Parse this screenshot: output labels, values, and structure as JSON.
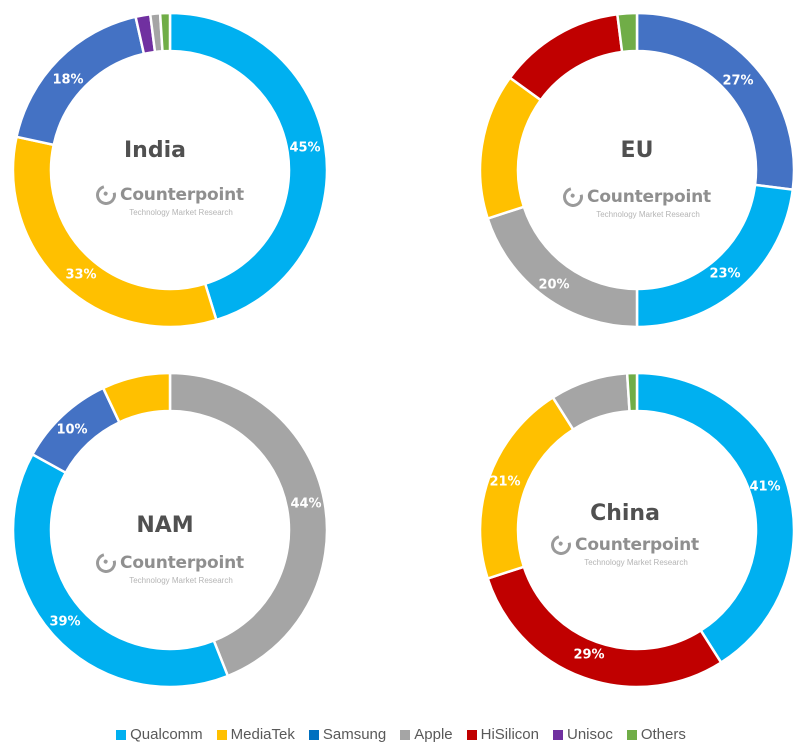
{
  "chart_data": [
    {
      "type": "pie",
      "subtype": "donut",
      "title": "India",
      "categories": [
        "Qualcomm",
        "MediaTek",
        "Samsung",
        "Unisoc",
        "Apple",
        "Others"
      ],
      "values": [
        45,
        33,
        18,
        1.5,
        1,
        1
      ],
      "labels": [
        "45%",
        "33%",
        "18%",
        "",
        "",
        ""
      ],
      "colors": [
        "#00B0F0",
        "#FFC000",
        "#4472C4",
        "#7030A0",
        "#A5A5A5",
        "#70AD47"
      ]
    },
    {
      "type": "pie",
      "subtype": "donut",
      "title": "EU",
      "categories": [
        "Samsung",
        "Qualcomm",
        "Apple",
        "MediaTek",
        "HiSilicon",
        "Others"
      ],
      "values": [
        27,
        23,
        20,
        15,
        13,
        2
      ],
      "labels": [
        "27%",
        "23%",
        "20%",
        "",
        "",
        ""
      ],
      "colors": [
        "#4472C4",
        "#00B0F0",
        "#A5A5A5",
        "#FFC000",
        "#C00000",
        "#70AD47"
      ]
    },
    {
      "type": "pie",
      "subtype": "donut",
      "title": "NAM",
      "categories": [
        "Apple",
        "Qualcomm",
        "Samsung",
        "MediaTek"
      ],
      "values": [
        44,
        39,
        10,
        7
      ],
      "labels": [
        "44%",
        "39%",
        "10%",
        ""
      ],
      "colors": [
        "#A5A5A5",
        "#00B0F0",
        "#4472C4",
        "#FFC000"
      ]
    },
    {
      "type": "pie",
      "subtype": "donut",
      "title": "China",
      "categories": [
        "Qualcomm",
        "HiSilicon",
        "MediaTek",
        "Apple",
        "Others"
      ],
      "values": [
        41,
        29,
        21,
        8,
        1
      ],
      "labels": [
        "41%",
        "29%",
        "21%",
        "",
        ""
      ],
      "colors": [
        "#00B0F0",
        "#C00000",
        "#FFC000",
        "#A5A5A5",
        "#70AD47"
      ]
    }
  ],
  "charts": {
    "india": {
      "title": "India",
      "labels": {
        "qualcomm": "45%",
        "mediatek": "33%",
        "samsung": "18%"
      }
    },
    "eu": {
      "title": "EU",
      "labels": {
        "samsung": "27%",
        "qualcomm": "23%",
        "apple": "20%"
      }
    },
    "nam": {
      "title": "NAM",
      "labels": {
        "apple": "44%",
        "qualcomm": "39%",
        "samsung": "10%"
      }
    },
    "china": {
      "title": "China",
      "labels": {
        "qualcomm": "41%",
        "hisilicon": "29%",
        "mediatek": "21%"
      }
    }
  },
  "watermark": {
    "name": "Counterpoint",
    "tagline": "Technology Market Research"
  },
  "legend": [
    {
      "label": "Qualcomm",
      "color": "#00B0F0"
    },
    {
      "label": "MediaTek",
      "color": "#FFC000"
    },
    {
      "label": "Samsung",
      "color": "#0070C0"
    },
    {
      "label": "Apple",
      "color": "#A5A5A5"
    },
    {
      "label": "HiSilicon",
      "color": "#C00000"
    },
    {
      "label": "Unisoc",
      "color": "#7030A0"
    },
    {
      "label": "Others",
      "color": "#70AD47"
    }
  ]
}
